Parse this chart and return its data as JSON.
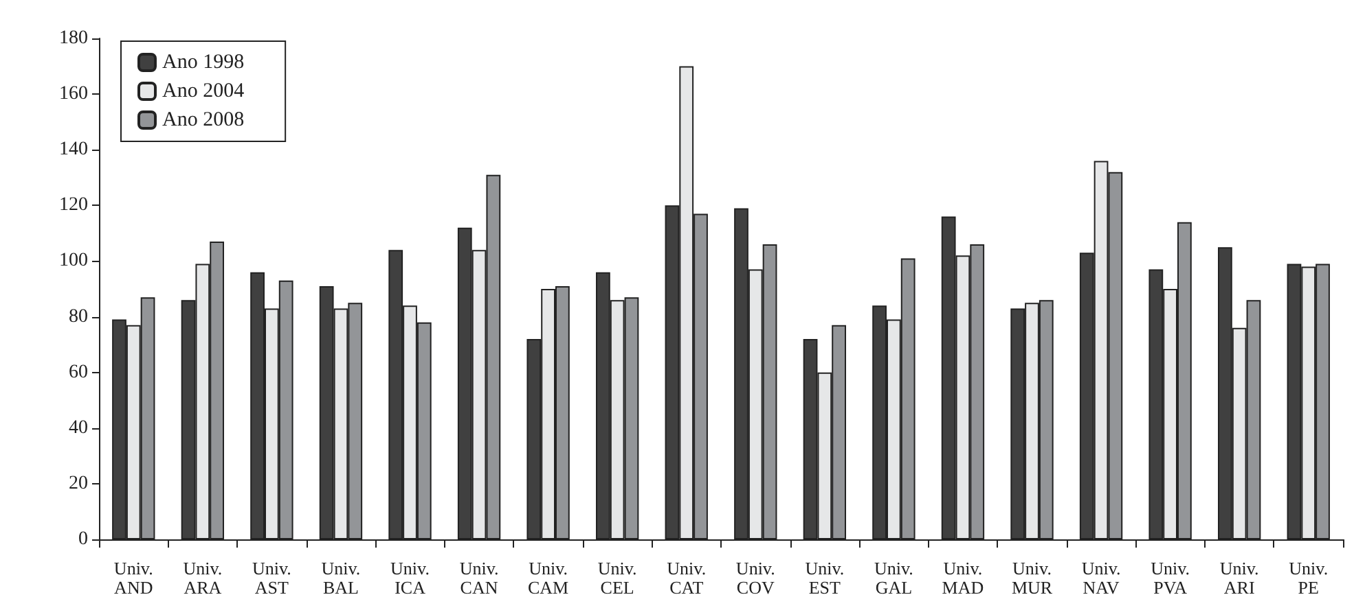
{
  "chart_data": {
    "type": "bar",
    "categories": [
      "Univ.\nAND",
      "Univ.\nARA",
      "Univ.\nAST",
      "Univ.\nBAL",
      "Univ.\nICA",
      "Univ.\nCAN",
      "Univ.\nCAM",
      "Univ.\nCEL",
      "Univ.\nCAT",
      "Univ.\nCOV",
      "Univ.\nEST",
      "Univ.\nGAL",
      "Univ.\nMAD",
      "Univ.\nMUR",
      "Univ.\nNAV",
      "Univ.\nPVA",
      "Univ.\nARI",
      "Univ.\nPE"
    ],
    "series": [
      {
        "name": "Ano 1998",
        "color": "#404040",
        "values": [
          79,
          86,
          96,
          91,
          104,
          112,
          72,
          96,
          120,
          119,
          72,
          84,
          116,
          83,
          103,
          97,
          105,
          99
        ]
      },
      {
        "name": "Ano 2004",
        "color": "#e6e7e8",
        "values": [
          77,
          99,
          83,
          83,
          84,
          104,
          90,
          86,
          170,
          97,
          60,
          79,
          102,
          85,
          136,
          90,
          76,
          98
        ]
      },
      {
        "name": "Ano 2008",
        "color": "#939598",
        "values": [
          87,
          107,
          93,
          85,
          78,
          131,
          91,
          87,
          117,
          106,
          77,
          101,
          106,
          86,
          132,
          114,
          86,
          99
        ]
      }
    ],
    "ylim": [
      0,
      180
    ],
    "yticks": [
      0,
      20,
      40,
      60,
      80,
      100,
      120,
      140,
      160,
      180
    ],
    "grid": false,
    "legend": "top left"
  }
}
